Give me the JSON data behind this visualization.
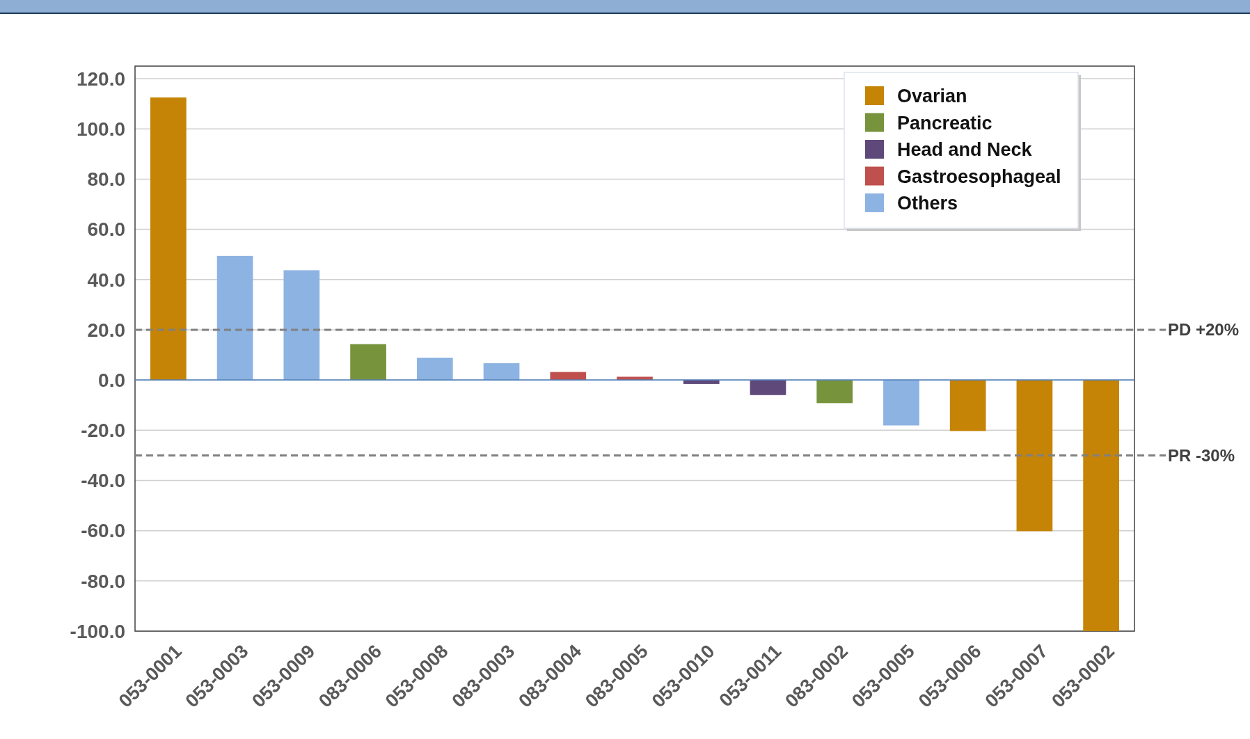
{
  "chart_data": {
    "type": "bar",
    "stacked": true,
    "categories": [
      "053-0001",
      "053-0003",
      "053-0009",
      "083-0006",
      "053-0008",
      "083-0003",
      "083-0004",
      "083-0005",
      "053-0010",
      "053-0011",
      "083-0002",
      "053-0005",
      "053-0006",
      "053-0007",
      "053-0002"
    ],
    "series": [
      {
        "name": "Ovarian",
        "color": "#c58405",
        "values": [
          112.5,
          null,
          null,
          null,
          null,
          null,
          null,
          null,
          null,
          null,
          null,
          null,
          -20.3,
          -60.2,
          -100
        ]
      },
      {
        "name": "Pancreatic",
        "color": "#77933c",
        "values": [
          null,
          null,
          null,
          14.3,
          null,
          null,
          null,
          null,
          null,
          null,
          -9.2,
          null,
          null,
          null,
          null
        ]
      },
      {
        "name": "Head and Neck",
        "color": "#5f497a",
        "values": [
          null,
          null,
          null,
          null,
          null,
          null,
          null,
          null,
          -1.6,
          -6.0,
          null,
          null,
          null,
          null,
          null
        ]
      },
      {
        "name": "Gastroesophageal",
        "color": "#c0504d",
        "values": [
          null,
          null,
          null,
          null,
          null,
          null,
          3.2,
          1.3,
          null,
          null,
          null,
          null,
          null,
          null,
          null
        ]
      },
      {
        "name": "Others",
        "color": "#8db3e2",
        "values": [
          null,
          49.4,
          43.7,
          null,
          8.9,
          6.7,
          null,
          null,
          null,
          null,
          null,
          -18.1,
          null,
          null,
          null
        ]
      }
    ],
    "ylim": [
      -100,
      125
    ],
    "yticks": [
      {
        "value": -100,
        "label": "-100.0"
      },
      {
        "value": -80,
        "label": "-80.0"
      },
      {
        "value": -60,
        "label": "-60.0"
      },
      {
        "value": -40,
        "label": "-40.0"
      },
      {
        "value": -20,
        "label": "-20.0"
      },
      {
        "value": 0,
        "label": "0.0"
      },
      {
        "value": 20,
        "label": "20.0"
      },
      {
        "value": 40,
        "label": "40.0"
      },
      {
        "value": 60,
        "label": "60.0"
      },
      {
        "value": 80,
        "label": "80.0"
      },
      {
        "value": 100,
        "label": "100.0"
      },
      {
        "value": 120,
        "label": "120.0"
      }
    ],
    "grid": "y",
    "legend": "top right",
    "ref_lines": [
      {
        "axis": "y",
        "value": 0,
        "color": "#4f81bd",
        "line_style": "solid"
      },
      {
        "axis": "y",
        "value": 20,
        "label": "PD +20%",
        "color": "#808080",
        "line_style": "dashed"
      },
      {
        "axis": "y",
        "value": -30,
        "label": "PR -30%",
        "color": "#808080",
        "line_style": "dashed"
      }
    ]
  }
}
